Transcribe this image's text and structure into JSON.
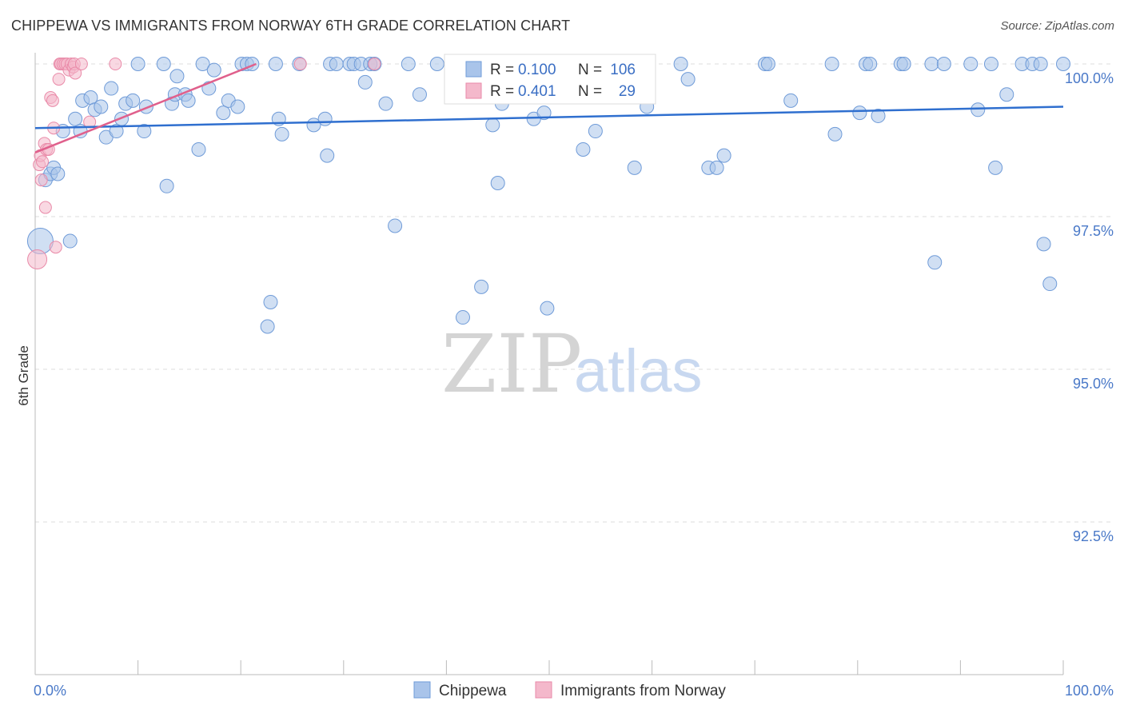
{
  "title": "CHIPPEWA VS IMMIGRANTS FROM NORWAY 6TH GRADE CORRELATION CHART",
  "source": "Source: ZipAtlas.com",
  "watermark": {
    "zip": "ZIP",
    "atlas": "atlas"
  },
  "colors": {
    "blue": "#a9c4ea",
    "blue_stroke": "#6f9bd8",
    "blue_line": "#2f6fcf",
    "pink": "#f4b8cb",
    "pink_stroke": "#e98aa8",
    "pink_line": "#e0608c",
    "tick": "#4a79c8"
  },
  "chart_data": {
    "type": "scatter",
    "ylabel": "6th Grade",
    "xlim": [
      0,
      100
    ],
    "ylim": [
      90.0,
      100.4
    ],
    "y_ticks": [
      {
        "value": 100.0,
        "label": "100.0%"
      },
      {
        "value": 97.5,
        "label": "97.5%"
      },
      {
        "value": 95.0,
        "label": "95.0%"
      },
      {
        "value": 92.5,
        "label": "92.5%"
      }
    ],
    "x_ticks": [
      {
        "value": 0,
        "label": "0.0%"
      },
      {
        "value": 100,
        "label": "100.0%"
      }
    ],
    "legend": [
      {
        "series": "Chippewa",
        "r_label": "R =",
        "r_value": "0.100",
        "n_label": "N =",
        "n_value": "106"
      },
      {
        "series": "Immigrants from Norway",
        "r_label": "R =",
        "r_value": "0.401",
        "n_label": "N =",
        "n_value": "29"
      }
    ],
    "series": [
      {
        "name": "Chippewa",
        "trend": {
          "x": [
            0,
            100
          ],
          "y": [
            98.95,
            99.3
          ]
        },
        "points": [
          [
            0.5,
            97.1
          ],
          [
            1.0,
            98.1
          ],
          [
            1.5,
            98.2
          ],
          [
            1.8,
            98.3
          ],
          [
            2.2,
            98.2
          ],
          [
            2.7,
            98.9
          ],
          [
            3.4,
            97.1
          ],
          [
            3.9,
            99.1
          ],
          [
            4.4,
            98.9
          ],
          [
            4.6,
            99.4
          ],
          [
            5.4,
            99.45
          ],
          [
            5.8,
            99.25
          ],
          [
            6.4,
            99.3
          ],
          [
            6.9,
            98.8
          ],
          [
            7.4,
            99.6
          ],
          [
            7.9,
            98.9
          ],
          [
            8.4,
            99.1
          ],
          [
            8.8,
            99.35
          ],
          [
            9.5,
            99.4
          ],
          [
            10.0,
            100.0
          ],
          [
            10.6,
            98.9
          ],
          [
            10.8,
            99.3
          ],
          [
            12.5,
            100.0
          ],
          [
            12.8,
            98.0
          ],
          [
            13.3,
            99.35
          ],
          [
            13.6,
            99.5
          ],
          [
            13.8,
            99.8
          ],
          [
            14.6,
            99.5
          ],
          [
            14.9,
            99.4
          ],
          [
            15.9,
            98.6
          ],
          [
            16.3,
            100.0
          ],
          [
            16.9,
            99.6
          ],
          [
            17.4,
            99.9
          ],
          [
            18.3,
            99.2
          ],
          [
            18.8,
            99.4
          ],
          [
            19.7,
            99.3
          ],
          [
            20.1,
            100.0
          ],
          [
            20.6,
            100.0
          ],
          [
            21.1,
            100.0
          ],
          [
            22.6,
            95.7
          ],
          [
            22.9,
            96.1
          ],
          [
            23.4,
            100.0
          ],
          [
            23.7,
            99.1
          ],
          [
            24.0,
            98.85
          ],
          [
            25.7,
            100.0
          ],
          [
            27.1,
            99.0
          ],
          [
            28.2,
            99.1
          ],
          [
            28.4,
            98.5
          ],
          [
            28.7,
            100.0
          ],
          [
            29.3,
            100.0
          ],
          [
            30.6,
            100.0
          ],
          [
            31.0,
            100.0
          ],
          [
            31.7,
            100.0
          ],
          [
            32.1,
            99.7
          ],
          [
            32.6,
            100.0
          ],
          [
            33.0,
            100.0
          ],
          [
            34.1,
            99.35
          ],
          [
            35.0,
            97.35
          ],
          [
            36.3,
            100.0
          ],
          [
            37.4,
            99.5
          ],
          [
            39.1,
            100.0
          ],
          [
            41.6,
            95.85
          ],
          [
            43.4,
            96.35
          ],
          [
            44.5,
            99.0
          ],
          [
            45.0,
            98.05
          ],
          [
            45.4,
            99.35
          ],
          [
            47.3,
            100.0
          ],
          [
            48.5,
            99.1
          ],
          [
            49.5,
            99.2
          ],
          [
            49.8,
            96.0
          ],
          [
            52.0,
            100.0
          ],
          [
            53.3,
            98.6
          ],
          [
            54.5,
            98.9
          ],
          [
            55.7,
            100.0
          ],
          [
            58.3,
            98.3
          ],
          [
            59.5,
            99.3
          ],
          [
            62.8,
            100.0
          ],
          [
            63.5,
            99.75
          ],
          [
            65.5,
            98.3
          ],
          [
            66.3,
            98.3
          ],
          [
            67.0,
            98.5
          ],
          [
            71.0,
            100.0
          ],
          [
            71.3,
            100.0
          ],
          [
            73.5,
            99.4
          ],
          [
            77.5,
            100.0
          ],
          [
            77.8,
            98.85
          ],
          [
            80.2,
            99.2
          ],
          [
            80.8,
            100.0
          ],
          [
            81.2,
            100.0
          ],
          [
            82.0,
            99.15
          ],
          [
            84.2,
            100.0
          ],
          [
            84.5,
            100.0
          ],
          [
            87.2,
            100.0
          ],
          [
            87.5,
            96.75
          ],
          [
            88.4,
            100.0
          ],
          [
            91.0,
            100.0
          ],
          [
            91.7,
            99.25
          ],
          [
            93.0,
            100.0
          ],
          [
            93.4,
            98.3
          ],
          [
            94.5,
            99.5
          ],
          [
            96.0,
            100.0
          ],
          [
            97.0,
            100.0
          ],
          [
            97.8,
            100.0
          ],
          [
            98.1,
            97.05
          ],
          [
            98.7,
            96.4
          ],
          [
            100.0,
            100.0
          ]
        ]
      },
      {
        "name": "Immigrants from Norway",
        "trend": {
          "x": [
            0,
            21.5
          ],
          "y": [
            98.55,
            100.0
          ]
        },
        "points": [
          [
            0.2,
            96.8
          ],
          [
            0.4,
            98.35
          ],
          [
            0.5,
            98.5
          ],
          [
            0.6,
            98.1
          ],
          [
            0.7,
            98.4
          ],
          [
            0.9,
            98.7
          ],
          [
            1.0,
            97.65
          ],
          [
            1.1,
            98.6
          ],
          [
            1.3,
            98.6
          ],
          [
            1.5,
            99.45
          ],
          [
            1.7,
            99.4
          ],
          [
            1.8,
            98.95
          ],
          [
            2.0,
            97.0
          ],
          [
            2.3,
            99.75
          ],
          [
            2.4,
            100.0
          ],
          [
            2.5,
            100.0
          ],
          [
            2.7,
            100.0
          ],
          [
            2.9,
            100.0
          ],
          [
            3.1,
            100.0
          ],
          [
            3.3,
            99.9
          ],
          [
            3.5,
            100.0
          ],
          [
            3.7,
            99.95
          ],
          [
            3.8,
            100.0
          ],
          [
            3.9,
            99.85
          ],
          [
            4.5,
            100.0
          ],
          [
            5.3,
            99.05
          ],
          [
            7.8,
            100.0
          ],
          [
            25.8,
            100.0
          ],
          [
            33.0,
            100.0
          ]
        ]
      }
    ]
  }
}
